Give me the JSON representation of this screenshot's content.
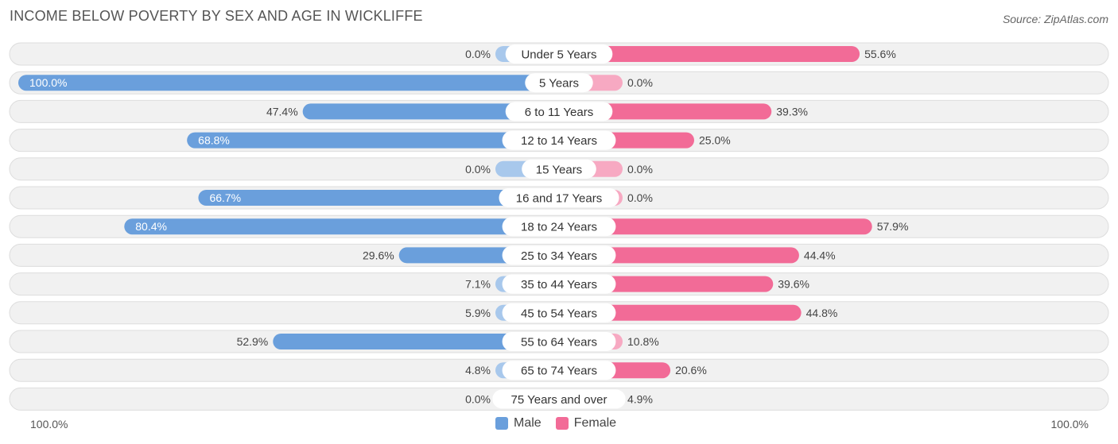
{
  "chart_data": {
    "type": "bar",
    "orientation": "horizontal-diverging",
    "title": "INCOME BELOW POVERTY BY SEX AND AGE IN WICKLIFFE",
    "source": "Source: ZipAtlas.com",
    "categories": [
      "Under 5 Years",
      "5 Years",
      "6 to 11 Years",
      "12 to 14 Years",
      "15 Years",
      "16 and 17 Years",
      "18 to 24 Years",
      "25 to 34 Years",
      "35 to 44 Years",
      "45 to 54 Years",
      "55 to 64 Years",
      "65 to 74 Years",
      "75 Years and over"
    ],
    "series": [
      {
        "name": "Male",
        "color": "#6a9fdc",
        "color_light": "#a8c8ec",
        "values": [
          0.0,
          100.0,
          47.4,
          68.8,
          0.0,
          66.7,
          80.4,
          29.6,
          7.1,
          5.9,
          52.9,
          4.8,
          0.0
        ],
        "labels": [
          "0.0%",
          "100.0%",
          "47.4%",
          "68.8%",
          "0.0%",
          "66.7%",
          "80.4%",
          "29.6%",
          "7.1%",
          "5.9%",
          "52.9%",
          "4.8%",
          "0.0%"
        ]
      },
      {
        "name": "Female",
        "color": "#f26b97",
        "color_light": "#f7a9c2",
        "values": [
          55.6,
          0.0,
          39.3,
          25.0,
          0.0,
          0.0,
          57.9,
          44.4,
          39.6,
          44.8,
          10.8,
          20.6,
          4.9
        ],
        "labels": [
          "55.6%",
          "0.0%",
          "39.3%",
          "25.0%",
          "0.0%",
          "0.0%",
          "57.9%",
          "44.4%",
          "39.6%",
          "44.8%",
          "10.8%",
          "20.6%",
          "4.9%"
        ]
      }
    ],
    "xlim": [
      -100,
      100
    ],
    "axis_left_label": "100.0%",
    "axis_right_label": "100.0%",
    "legend": [
      "Male",
      "Female"
    ],
    "legend_position": "bottom-center"
  }
}
